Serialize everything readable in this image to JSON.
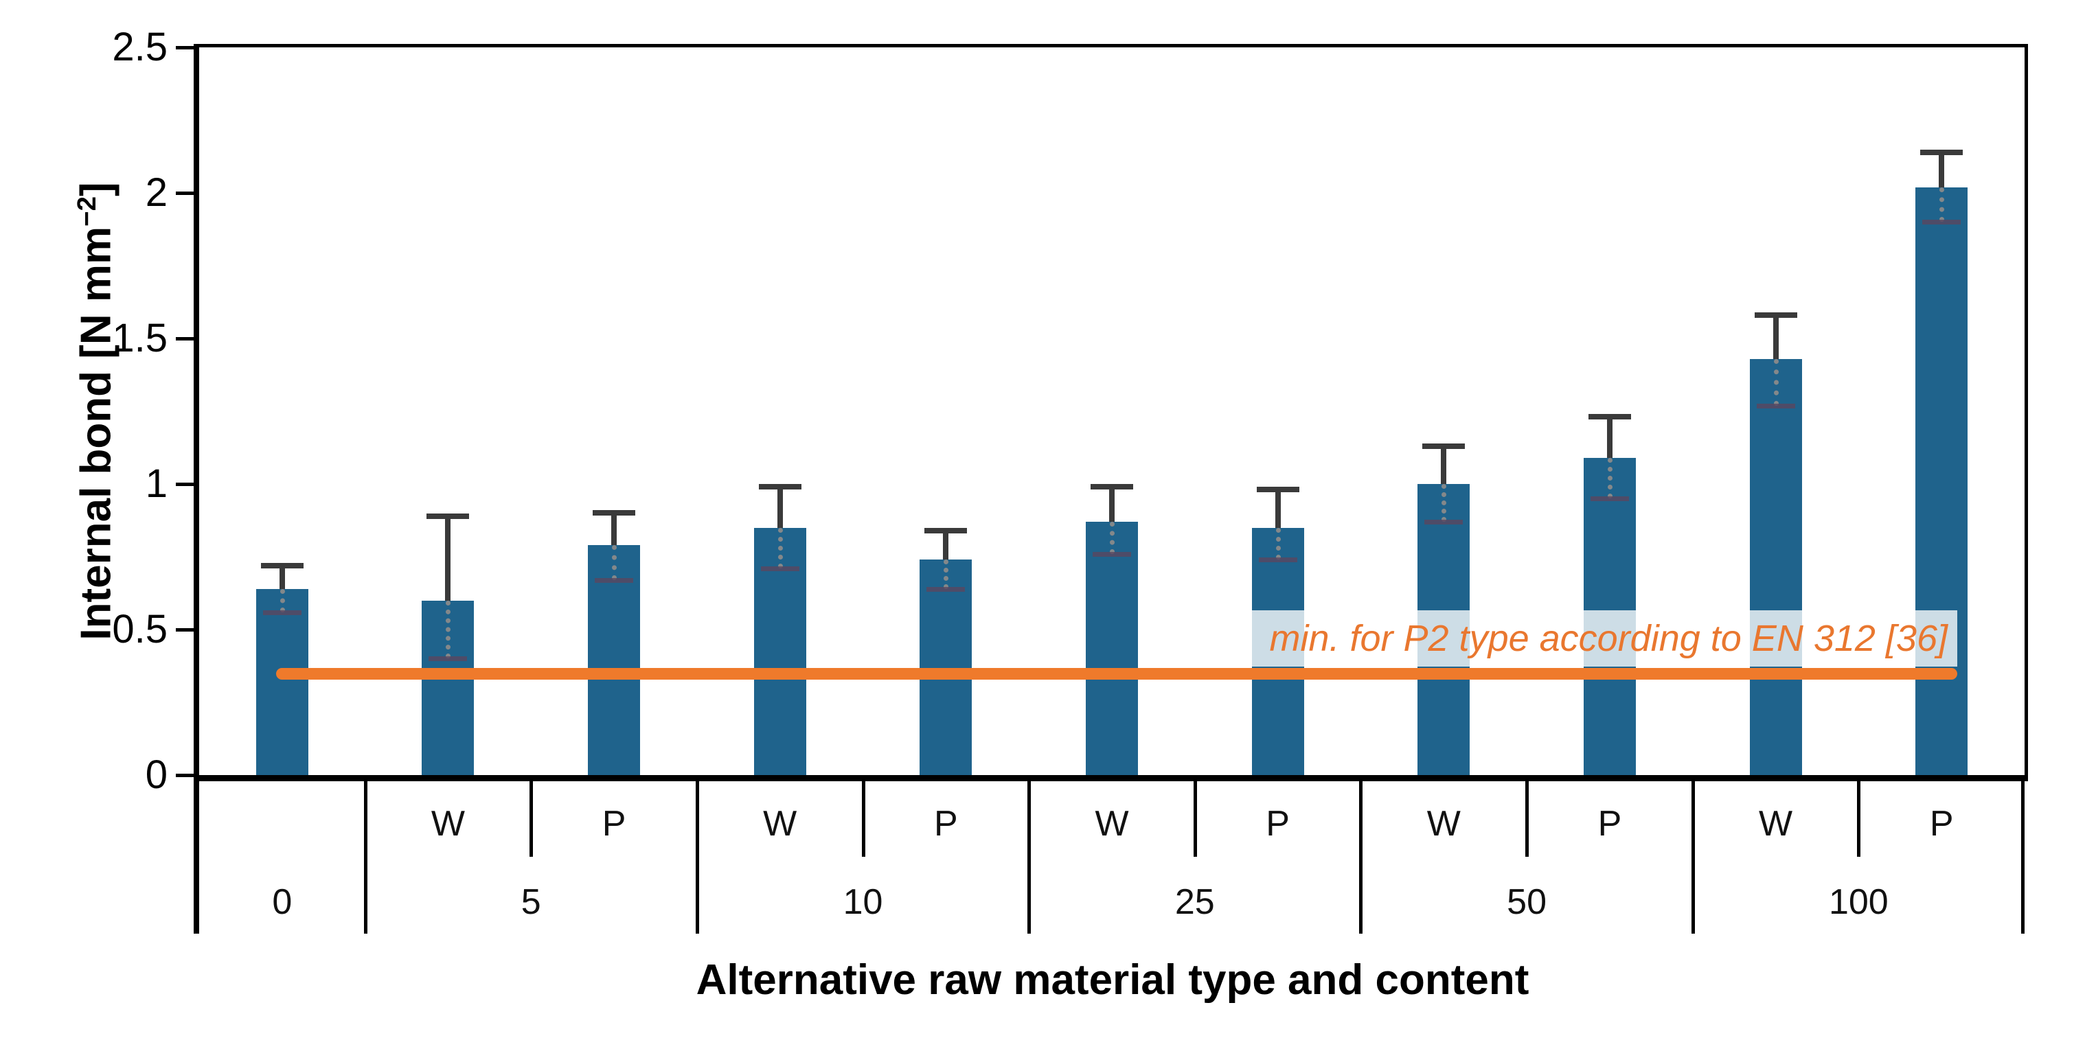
{
  "chart_data": {
    "type": "bar",
    "title": "",
    "y_axis": {
      "label": "Internal bond [N mm−2]",
      "label_prefix": "Internal bond [N mm",
      "label_sup": "−2",
      "label_suffix": "]",
      "ylim": [
        0,
        2.5
      ],
      "ticks": [
        {
          "value": 0,
          "label": "0"
        },
        {
          "value": 0.5,
          "label": "0.5"
        },
        {
          "value": 1,
          "label": "1"
        },
        {
          "value": 1.5,
          "label": "1.5"
        },
        {
          "value": 2,
          "label": "2"
        },
        {
          "value": 2.5,
          "label": "2.5"
        }
      ]
    },
    "x_axis": {
      "label": "Alternative raw material type and content"
    },
    "groups": [
      {
        "content": "0",
        "bars": [
          {
            "type": "",
            "value": 0.64,
            "whisker_top": 0.72,
            "whisker_bottom": 0.56
          }
        ]
      },
      {
        "content": "5",
        "bars": [
          {
            "type": "W",
            "value": 0.6,
            "whisker_top": 0.89,
            "whisker_bottom": 0.4
          },
          {
            "type": "P",
            "value": 0.79,
            "whisker_top": 0.9,
            "whisker_bottom": 0.67
          }
        ]
      },
      {
        "content": "10",
        "bars": [
          {
            "type": "W",
            "value": 0.85,
            "whisker_top": 0.99,
            "whisker_bottom": 0.71
          },
          {
            "type": "P",
            "value": 0.74,
            "whisker_top": 0.84,
            "whisker_bottom": 0.64
          }
        ]
      },
      {
        "content": "25",
        "bars": [
          {
            "type": "W",
            "value": 0.87,
            "whisker_top": 0.99,
            "whisker_bottom": 0.76
          },
          {
            "type": "P",
            "value": 0.85,
            "whisker_top": 0.98,
            "whisker_bottom": 0.74
          }
        ]
      },
      {
        "content": "50",
        "bars": [
          {
            "type": "W",
            "value": 1.0,
            "whisker_top": 1.13,
            "whisker_bottom": 0.87
          },
          {
            "type": "P",
            "value": 1.09,
            "whisker_top": 1.23,
            "whisker_bottom": 0.95
          }
        ]
      },
      {
        "content": "100",
        "bars": [
          {
            "type": "W",
            "value": 1.43,
            "whisker_top": 1.58,
            "whisker_bottom": 1.27
          },
          {
            "type": "P",
            "value": 2.02,
            "whisker_top": 2.14,
            "whisker_bottom": 1.9
          }
        ]
      }
    ],
    "threshold": {
      "value": 0.35,
      "label": "min. for P2 type according to EN 312 [36]"
    },
    "colors": {
      "bar": "#1F638C",
      "error_solid": "#3A3A3A",
      "error_dotted": "#8A8A8A",
      "threshold_line": "#EF7A2B",
      "threshold_text": "#E9772F",
      "axis": "#000000"
    },
    "legend": null,
    "grid": false
  }
}
